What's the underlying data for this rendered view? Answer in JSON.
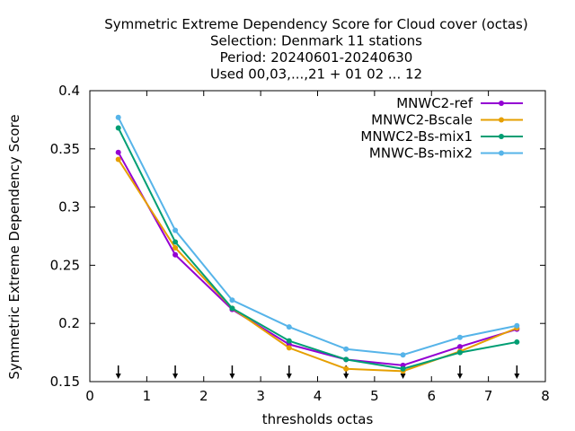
{
  "chart_data": {
    "type": "line",
    "title_lines": [
      "Symmetric Extreme Dependency Score  for Cloud cover (octas)",
      "Selection: Denmark     11 stations",
      "Period: 20240601-20240630",
      "Used 00,03,...,21 + 01 02 ... 12"
    ],
    "xlabel": "thresholds octas",
    "ylabel": "Symmetric Extreme Dependency Score",
    "xlim": [
      0,
      8
    ],
    "ylim": [
      0.15,
      0.4
    ],
    "xticks": [
      0,
      1,
      2,
      3,
      4,
      5,
      6,
      7,
      8
    ],
    "yticks": [
      0.15,
      0.2,
      0.25,
      0.3,
      0.35,
      0.4
    ],
    "ytick_labels": [
      "0.15",
      "0.2",
      "0.25",
      "0.3",
      "0.35",
      "0.4"
    ],
    "grid": false,
    "legend_position": "top-right",
    "x": [
      0.5,
      1.5,
      2.5,
      3.5,
      4.5,
      5.5,
      6.5,
      7.5
    ],
    "threshold_markers": [
      0.5,
      1.5,
      2.5,
      3.5,
      4.5,
      5.5,
      6.5,
      7.5
    ],
    "series": [
      {
        "name": "MNWC2-ref",
        "color": "#9400d3",
        "values": [
          0.347,
          0.259,
          0.212,
          0.182,
          0.169,
          0.164,
          0.18,
          0.195
        ]
      },
      {
        "name": "MNWC2-Bscale",
        "color": "#e69f00",
        "values": [
          0.341,
          0.265,
          0.213,
          0.179,
          0.161,
          0.159,
          0.176,
          0.196
        ]
      },
      {
        "name": "MNWC2-Bs-mix1",
        "color": "#009e73",
        "values": [
          0.368,
          0.27,
          0.213,
          0.185,
          0.169,
          0.161,
          0.175,
          0.184
        ]
      },
      {
        "name": "MNWC-Bs-mix2",
        "color": "#56b4e9",
        "values": [
          0.377,
          0.28,
          0.22,
          0.197,
          0.178,
          0.173,
          0.188,
          0.198
        ]
      }
    ]
  }
}
